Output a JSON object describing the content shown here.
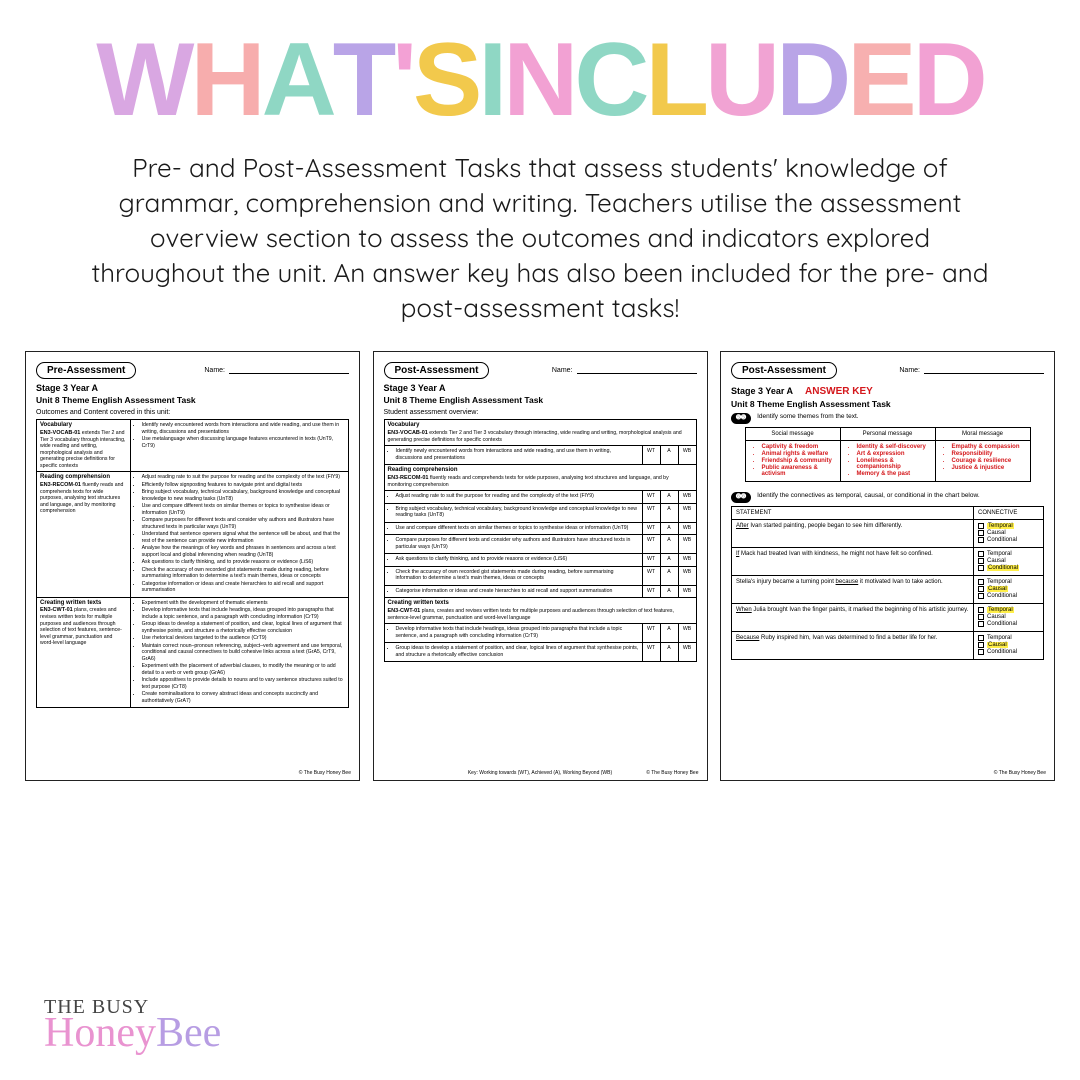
{
  "title_letters": [
    {
      "ch": "W",
      "col": "#d9a7e2"
    },
    {
      "ch": "H",
      "col": "#f7adad"
    },
    {
      "ch": "A",
      "col": "#8fd7c4"
    },
    {
      "ch": "T",
      "col": "#b9a4e7"
    },
    {
      "ch": "'",
      "col": "#f3a1d5"
    },
    {
      "ch": "S",
      "col": "#f2c94c"
    },
    {
      "ch": " ",
      "col": "#fff"
    },
    {
      "ch": "I",
      "col": "#8fd7c4"
    },
    {
      "ch": "N",
      "col": "#f2a1d3"
    },
    {
      "ch": "C",
      "col": "#8fd7c4"
    },
    {
      "ch": "L",
      "col": "#f2c94c"
    },
    {
      "ch": "U",
      "col": "#f1a3d3"
    },
    {
      "ch": "D",
      "col": "#b9a4e7"
    },
    {
      "ch": "E",
      "col": "#f7b0b0"
    },
    {
      "ch": "D",
      "col": "#f2a1d3"
    }
  ],
  "intro": "Pre- and Post-Assessment Tasks that assess students' knowledge of grammar, comprehension and writing. Teachers utilise the assessment overview section to assess the outcomes and indicators explored throughout the unit. An answer key has also been included for the pre- and post-assessment tasks!",
  "common": {
    "name_label": "Name:",
    "stage": "Stage 3 Year A",
    "unit": "Unit 8 Theme English Assessment Task",
    "copyright": "© The Busy Honey Bee"
  },
  "sheet1": {
    "badge": "Pre-Assessment",
    "sub": "Outcomes and Content covered in this unit:",
    "rows": [
      {
        "left_title": "Vocabulary",
        "left_code": "EN3-VOCAB-01",
        "left_body": "extends Tier 2 and Tier 3 vocabulary through interacting, wide reading and writing, morphological analysis and generating precise definitions for specific contexts",
        "items": [
          "Identify newly encountered words from interactions and wide reading, and use them in writing, discussions and presentations",
          "Use metalanguage when discussing language features encountered in texts (UnT9, CrT9)"
        ]
      },
      {
        "left_title": "Reading comprehension",
        "left_code": "EN3-RECOM-01",
        "left_body": "fluently reads and comprehends texts for wide purposes, analysing text structures and language, and by monitoring comprehension",
        "items": [
          "Adjust reading rate to suit the purpose for reading and the complexity of the text (FlY9)",
          "Efficiently follow signposting features to navigate print and digital texts",
          "Bring subject vocabulary, technical vocabulary, background knowledge and conceptual knowledge to new reading tasks (UnT8)",
          "Use and compare different texts on similar themes or topics to synthesise ideas or information (UnT9)",
          "Compare purposes for different texts and consider why authors and illustrators have structured texts in particular ways (UnT9)",
          "Understand that sentence openers signal what the sentence will be about, and that the rest of the sentence can provide new information",
          "Analyse how the meanings of key words and phrases in sentences and across a text support local and global inferencing when reading (UnT8)",
          "Ask questions to clarify thinking, and to provide reasons or evidence (LiS6)",
          "Check the accuracy of own recorded gist statements made during reading, before summarising information to determine a text's main themes, ideas or concepts",
          "Categorise information or ideas and create hierarchies to aid recall and support summarisation"
        ]
      },
      {
        "left_title": "Creating written texts",
        "left_code": "EN3-CWT-01",
        "left_body": "plans, creates and revises written texts for multiple purposes and audiences through selection of text features, sentence-level grammar, punctuation and word-level language",
        "items": [
          "Experiment with the development of thematic elements",
          "Develop informative texts that include headings, ideas grouped into paragraphs that include a topic sentence, and a paragraph with concluding information (CrT9)",
          "Group ideas to develop a statement of position, and clear, logical lines of argument that synthesise points, and structure a rhetorically effective conclusion",
          "Use rhetorical devices targeted to the audience (CrT9)",
          "Maintain correct noun–pronoun referencing, subject–verb agreement and use temporal, conditional and causal connectives to build cohesive links across a text (GrA5, CrT9, GrA6)",
          "Experiment with the placement of adverbial clauses, to modify the meaning or to add detail to a verb or verb group (GrA6)",
          "Include appositives to provide details to nouns and to vary sentence structures suited to text purpose (CrT8)",
          "Create nominalisations to convey abstract ideas and concepts succinctly and authoritatively (GrA7)"
        ]
      }
    ]
  },
  "sheet2": {
    "badge": "Post-Assessment",
    "sub": "Student assessment overview:",
    "keytext": "Key: Working towards (WT), Achieved (A), Working Beyond (WB)",
    "vocab_head": "Vocabulary",
    "vocab_code": "EN3-VOCAB-01",
    "vocab_body": "extends Tier 2 and Tier 3 vocabulary through interacting, wide reading and writing, morphological analysis and generating precise definitions for specific contexts",
    "vocab_items": [
      "Identify newly encountered words from interactions and wide reading, and use them in writing, discussions and presentations"
    ],
    "read_head": "Reading comprehension",
    "read_code": "EN3-RECOM-01",
    "read_body": "fluently reads and comprehends texts for wide purposes, analysing text structures and language, and by monitoring comprehension",
    "read_items": [
      "Adjust reading rate to suit the purpose for reading and the complexity of the text (FlY9)",
      "Bring subject vocabulary, technical vocabulary, background knowledge and conceptual knowledge to new reading tasks (UnT8)",
      "Use and compare different texts on similar themes or topics to synthesise ideas or information (UnT9)",
      "Compare purposes for different texts and consider why authors and illustrators have structured texts in particular ways (UnT9)",
      "Ask questions to clarify thinking, and to provide reasons or evidence (LiS6)",
      "Check the accuracy of own recorded gist statements made during reading, before summarising information to determine a text's main themes, ideas or concepts",
      "Categorise information or ideas and create hierarchies to aid recall and support summarisation"
    ],
    "write_head": "Creating written texts",
    "write_code": "EN3-CWT-01",
    "write_body": "plans, creates and revises written texts for multiple purposes and audiences through selection of text features, sentence-level grammar, punctuation and word-level language",
    "write_items": [
      "Develop informative texts that include headings, ideas grouped into paragraphs that include a topic sentence, and a paragraph with concluding information (CrT9)",
      "Group ideas to develop a statement of position, and clear, logical lines of argument that synthesise points, and structure a rhetorically effective conclusion"
    ],
    "rates": [
      "WT",
      "A",
      "WB"
    ]
  },
  "sheet3": {
    "badge": "Post-Assessment",
    "answer": "ANSWER KEY",
    "q5": "Identify some themes from the text.",
    "msg_head": [
      "Social message",
      "Personal message",
      "Moral message"
    ],
    "msg_cols": [
      [
        "Captivity & freedom",
        "Animal rights & welfare",
        "Friendship & community",
        "Public awareness & activism"
      ],
      [
        "Identity & self-discovery",
        "Art & expression",
        "Loneliness & companionship",
        "Memory & the past"
      ],
      [
        "Empathy & compassion",
        "Responsibility",
        "Courage & resilience",
        "Justice & injustice"
      ]
    ],
    "q6": "Identify the connectives as temporal, causal, or conditional in the chart below.",
    "conn_head": [
      "STATEMENT",
      "CONNECTIVE"
    ],
    "opts": [
      "Temporal",
      "Causal",
      "Conditional"
    ],
    "rows": [
      {
        "pre": "",
        "u": "After",
        "post": " Ivan started painting, people began to see him differently.",
        "hi": 0
      },
      {
        "pre": "",
        "u": "If",
        "post": " Mack had treated Ivan with kindness, he might not have felt so confined.",
        "hi": 2
      },
      {
        "pre": "Stella's injury became a turning point ",
        "u": "because",
        "post": " it motivated Ivan to take action.",
        "hi": 1
      },
      {
        "pre": "",
        "u": "When",
        "post": " Julia brought Ivan the finger paints, it marked the beginning of his artistic journey.",
        "hi": 0
      },
      {
        "pre": "",
        "u": "Because",
        "post": " Ruby inspired him, Ivan was determined to find a better life for her.",
        "hi": 1
      }
    ]
  },
  "logo": {
    "line1": "THE BUSY",
    "line2a": "Honey",
    "line2b": "Bee"
  }
}
